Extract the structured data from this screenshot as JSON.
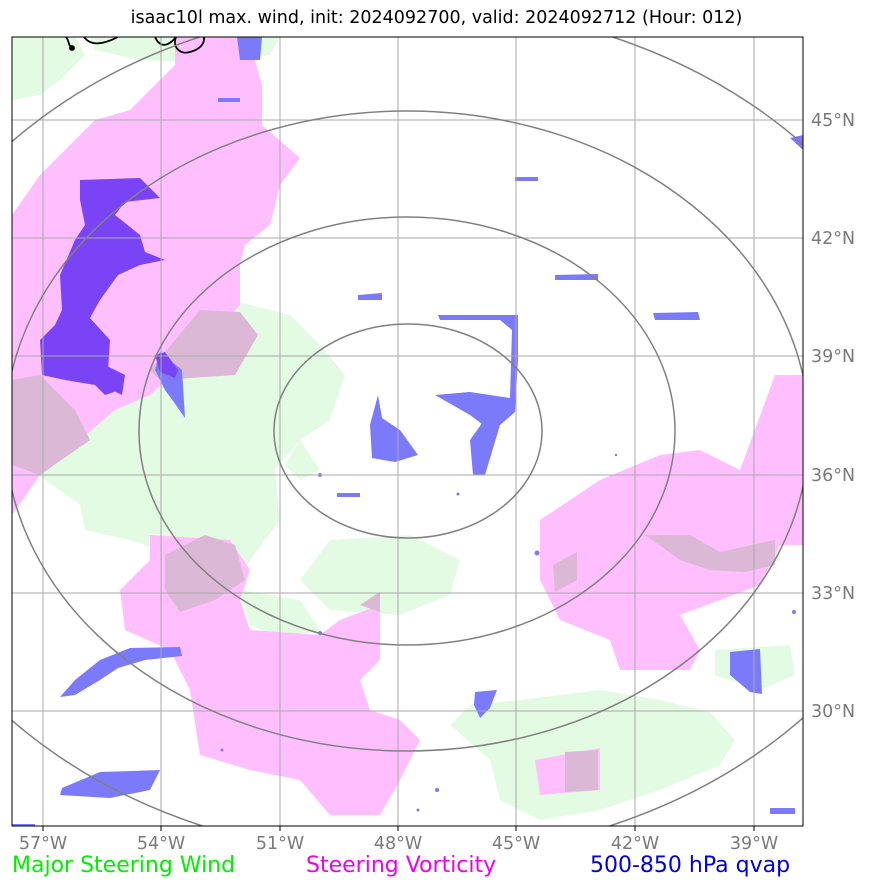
{
  "title": "isaac10l max. wind, init: 2024092700, valid: 2024092712 (Hour: 012)",
  "map": {
    "lon_ticks": [
      "57°W",
      "54°W",
      "51°W",
      "48°W",
      "45°W",
      "42°W",
      "39°W"
    ],
    "lat_ticks": [
      "45°N",
      "42°N",
      "39°N",
      "36°N",
      "33°N",
      "30°N"
    ],
    "lon_range": [
      -57.8,
      -37.8
    ],
    "lat_range": [
      27.5,
      47.5
    ],
    "center": {
      "lon": -48.0,
      "lat": 37.2
    },
    "range_rings": 4
  },
  "legend": {
    "wind": {
      "label": "Major Steering Wind",
      "color": "#00ee00"
    },
    "vorticity": {
      "label": "Steering Vorticity",
      "color": "#ee00ee"
    },
    "qvap": {
      "label": "500-850 hPa qvap",
      "color": "#0000dd"
    }
  },
  "colors": {
    "wind_fill": "#e2fbe2",
    "vorticity_fill": "#ffbfff",
    "overlap_fill": "#dbb8d6",
    "qvap_fill": "#7a7afb",
    "qvap_dense_fill": "#7a44f6",
    "grid": "#aaaaaa",
    "rings": "#808080",
    "coast": "#000000"
  }
}
